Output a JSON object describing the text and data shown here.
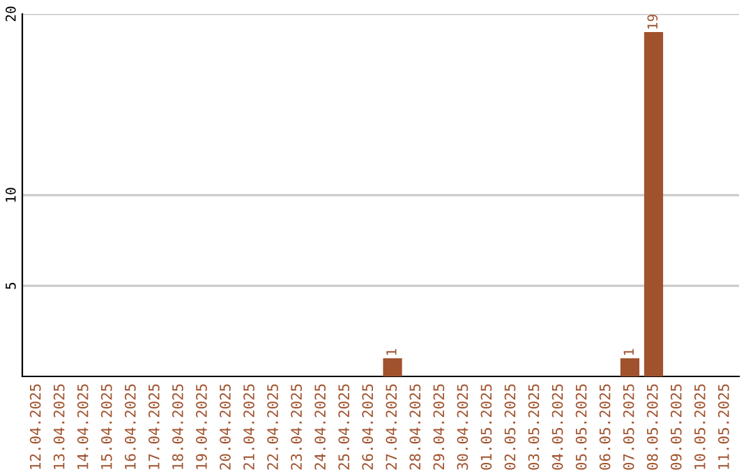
{
  "chart_data": {
    "type": "bar",
    "categories": [
      "12.04.2025",
      "13.04.2025",
      "14.04.2025",
      "15.04.2025",
      "16.04.2025",
      "17.04.2025",
      "18.04.2025",
      "19.04.2025",
      "20.04.2025",
      "21.04.2025",
      "22.04.2025",
      "23.04.2025",
      "24.04.2025",
      "25.04.2025",
      "26.04.2025",
      "27.04.2025",
      "28.04.2025",
      "29.04.2025",
      "30.04.2025",
      "01.05.2025",
      "02.05.2025",
      "03.05.2025",
      "04.05.2025",
      "05.05.2025",
      "06.05.2025",
      "07.05.2025",
      "08.05.2025",
      "09.05.2025",
      "10.05.2025",
      "11.05.2025"
    ],
    "values": [
      0,
      0,
      0,
      0,
      0,
      0,
      0,
      0,
      0,
      0,
      0,
      0,
      0,
      0,
      0,
      1,
      0,
      0,
      0,
      0,
      0,
      0,
      0,
      0,
      0,
      1,
      19,
      0,
      0,
      0
    ],
    "value_labels": [
      null,
      null,
      null,
      null,
      null,
      null,
      null,
      null,
      null,
      null,
      null,
      null,
      null,
      null,
      null,
      "1",
      null,
      null,
      null,
      null,
      null,
      null,
      null,
      null,
      null,
      "1",
      "19",
      null,
      null,
      null
    ],
    "color": "#a0522d",
    "ylim": [
      0,
      20
    ],
    "yticks": [
      5,
      10,
      20
    ],
    "grid": "y"
  }
}
